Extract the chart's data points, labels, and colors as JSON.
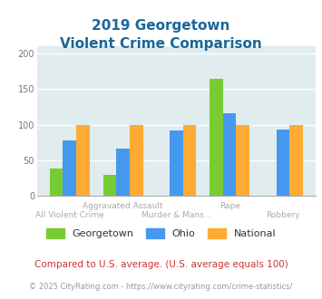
{
  "title_line1": "2019 Georgetown",
  "title_line2": "Violent Crime Comparison",
  "categories5": [
    "All Violent Crime",
    "Aggravated Assault",
    "Murder & Mans...",
    "Rape",
    "Robbery"
  ],
  "georgetown": [
    38,
    30,
    0,
    165,
    0
  ],
  "ohio": [
    78,
    66,
    92,
    116,
    93
  ],
  "national": [
    100,
    100,
    100,
    100,
    100
  ],
  "color_georgetown": "#77cc33",
  "color_ohio": "#4499ee",
  "color_national": "#ffaa33",
  "ylim": [
    0,
    210
  ],
  "yticks": [
    0,
    50,
    100,
    150,
    200
  ],
  "plot_bg": "#e0ecee",
  "title_color": "#1a6699",
  "xtick_color": "#aaaaaa",
  "footnote1": "Compared to U.S. average. (U.S. average equals 100)",
  "footnote2": "© 2025 CityRating.com - https://www.cityrating.com/crime-statistics/",
  "footnote1_color": "#cc3333",
  "footnote2_color": "#999999",
  "footnote2_url_color": "#4499ee",
  "legend_labels": [
    "Georgetown",
    "Ohio",
    "National"
  ]
}
